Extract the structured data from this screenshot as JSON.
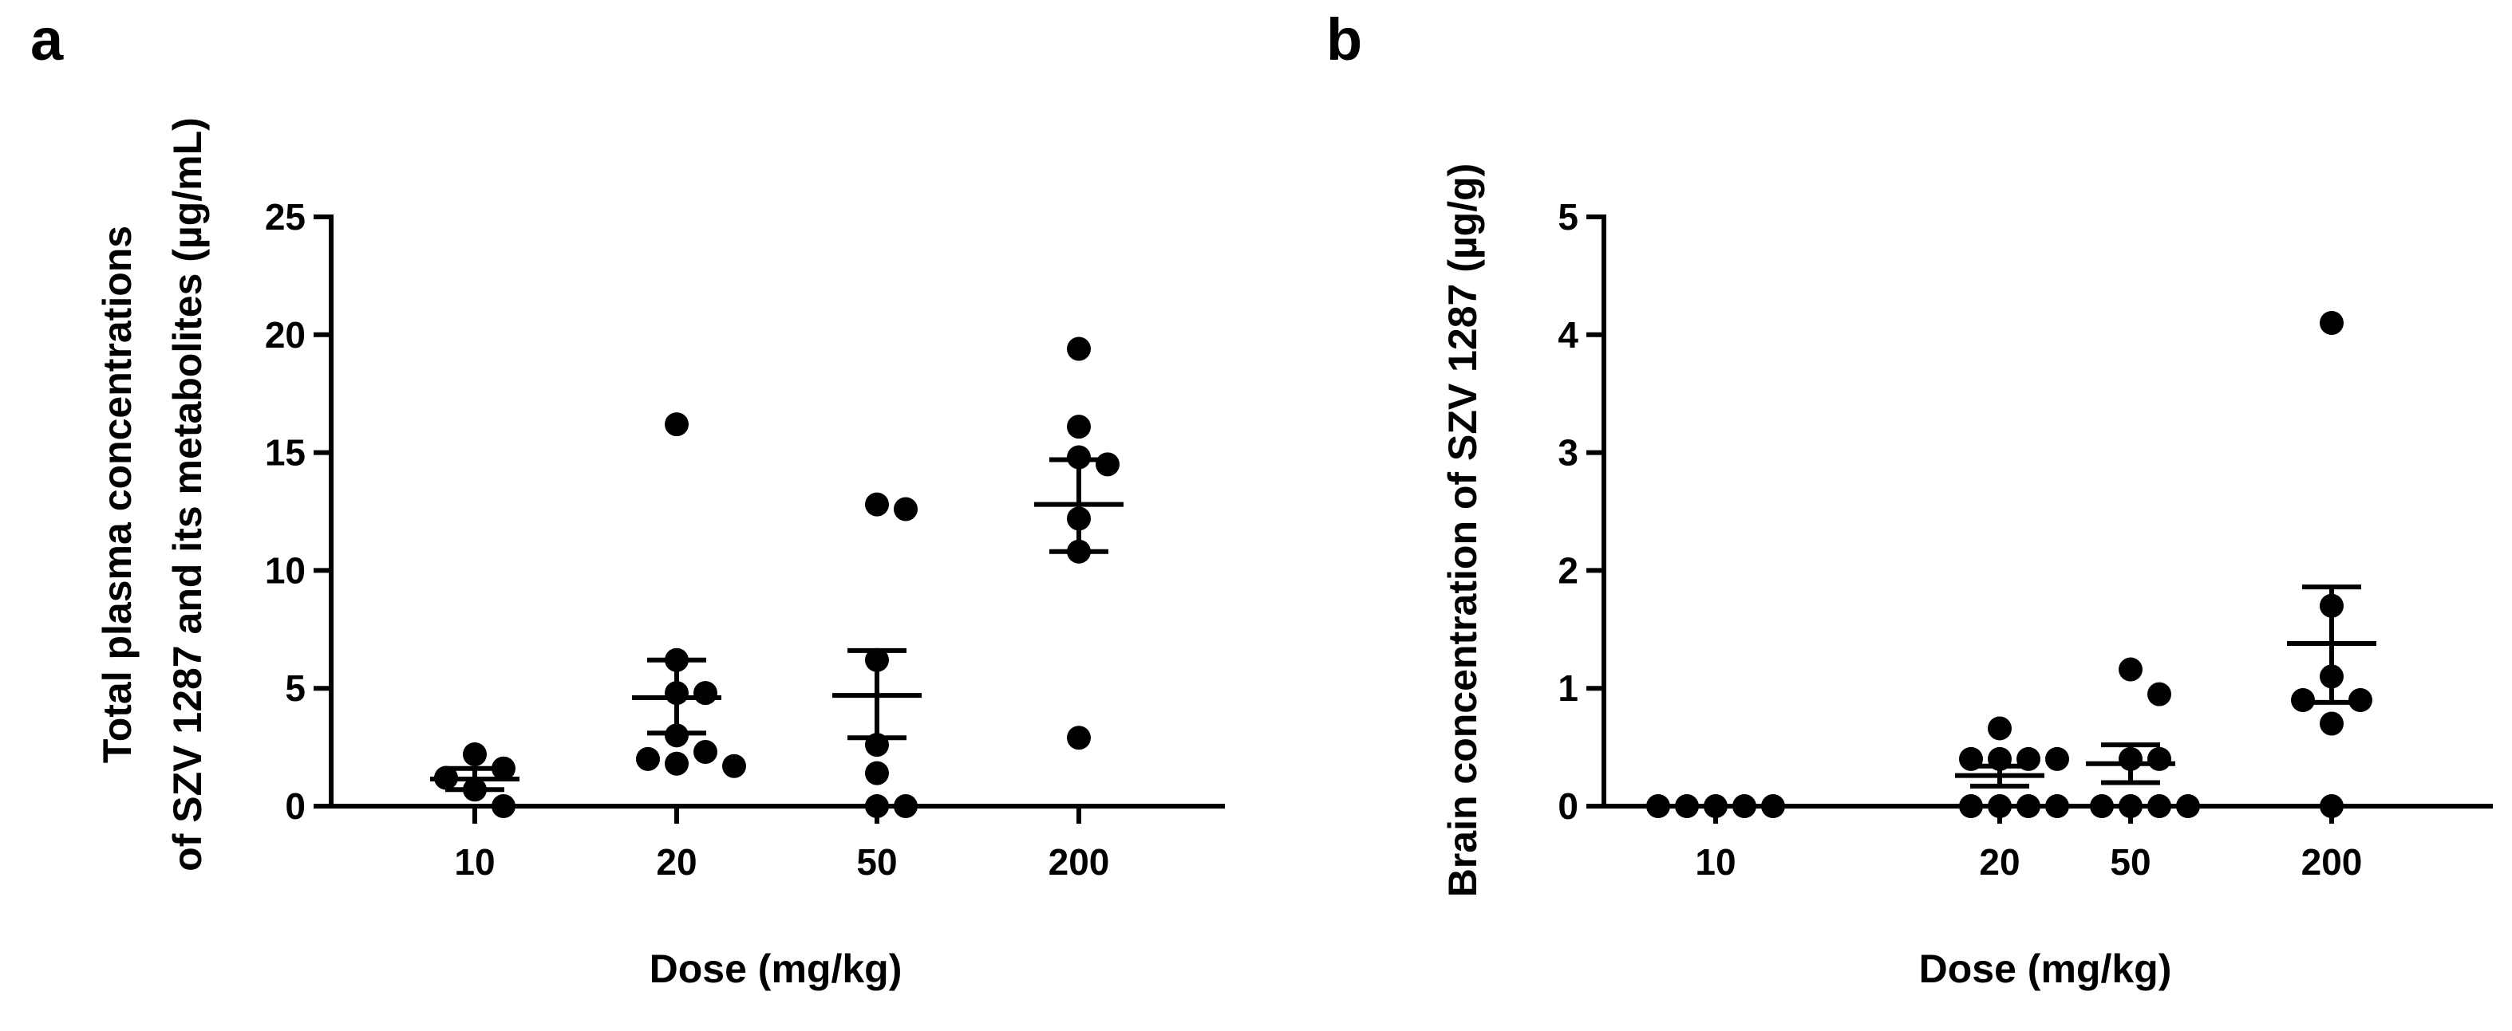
{
  "chart_data": [
    {
      "panel_label": "a",
      "type": "scatter",
      "xlabel": "Dose (mg/kg)",
      "ylabel_lines": [
        "Total plasma concentrations",
        "of SZV 1287 and its metabolites (µg/mL)"
      ],
      "ylim": [
        0,
        25
      ],
      "yticks": [
        0,
        5,
        10,
        15,
        20,
        25
      ],
      "categories": [
        "10",
        "20",
        "50",
        "200"
      ],
      "groups": [
        {
          "dose": "10",
          "points": [
            2.2,
            1.6,
            1.2,
            0.7,
            0.0
          ],
          "mean": 1.15,
          "sem_low": 0.7,
          "sem_high": 1.6
        },
        {
          "dose": "20",
          "points": [
            16.2,
            6.2,
            4.8,
            4.8,
            3.0,
            2.3,
            2.0,
            1.8,
            1.7
          ],
          "mean": 4.6,
          "sem_low": 3.1,
          "sem_high": 6.2
        },
        {
          "dose": "50",
          "points": [
            12.8,
            12.6,
            6.2,
            2.6,
            1.4,
            0.0,
            0.0
          ],
          "mean": 4.7,
          "sem_low": 2.9,
          "sem_high": 6.6
        },
        {
          "dose": "200",
          "points": [
            19.4,
            16.1,
            14.8,
            14.5,
            12.2,
            10.8,
            2.9
          ],
          "mean": 12.8,
          "sem_low": 10.8,
          "sem_high": 14.7
        }
      ]
    },
    {
      "panel_label": "b",
      "type": "scatter",
      "xlabel": "Dose (mg/kg)",
      "ylabel_lines": [
        "Brain concentration of SZV 1287 (µg/g)"
      ],
      "ylim": [
        0,
        5
      ],
      "yticks": [
        0,
        1,
        2,
        3,
        4,
        5
      ],
      "categories": [
        "10",
        "20",
        "50",
        "200"
      ],
      "groups": [
        {
          "dose": "10",
          "points": [
            0,
            0,
            0,
            0,
            0
          ],
          "mean": 0.0,
          "sem_low": 0.0,
          "sem_high": 0.0
        },
        {
          "dose": "20",
          "points": [
            0.66,
            0.4,
            0.4,
            0.4,
            0.4,
            0.0,
            0.0,
            0.0,
            0.0
          ],
          "mean": 0.26,
          "sem_low": 0.17,
          "sem_high": 0.34
        },
        {
          "dose": "50",
          "points": [
            1.16,
            0.95,
            0.4,
            0.4,
            0.0,
            0.0,
            0.0,
            0.0
          ],
          "mean": 0.36,
          "sem_low": 0.2,
          "sem_high": 0.52
        },
        {
          "dose": "200",
          "points": [
            4.1,
            1.7,
            1.1,
            0.9,
            0.9,
            0.7,
            0.0
          ],
          "mean": 1.38,
          "sem_low": 0.88,
          "sem_high": 1.86
        }
      ]
    }
  ]
}
